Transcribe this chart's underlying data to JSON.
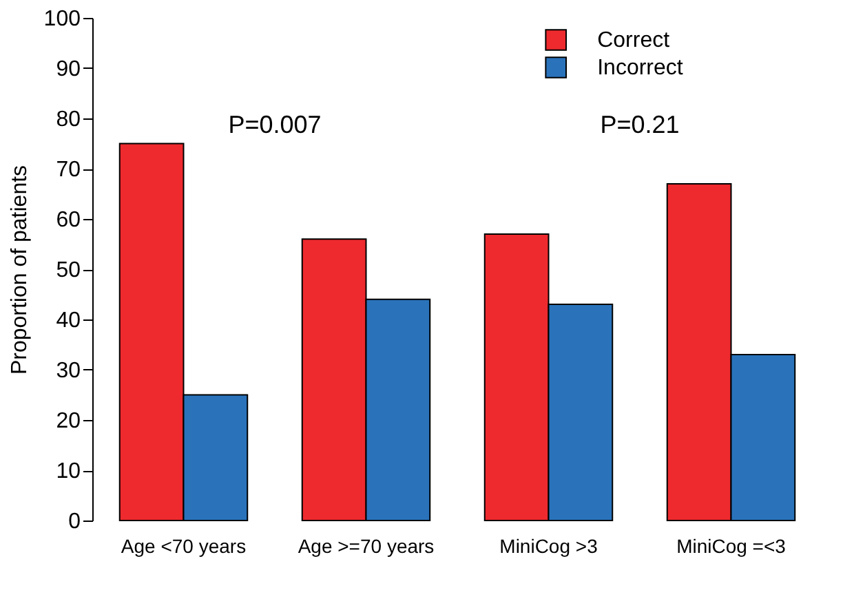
{
  "chart_data": {
    "type": "bar",
    "ylabel": "Proportion of patients",
    "categories": [
      "Age <70 years",
      "Age >=70 years",
      "MiniCog >3",
      "MiniCog =<3"
    ],
    "series": [
      {
        "name": "Correct",
        "color": "#ee2a2e",
        "values": [
          75,
          56,
          57,
          67
        ]
      },
      {
        "name": "Incorrect",
        "color": "#2a73bb",
        "values": [
          25,
          44,
          43,
          33
        ]
      }
    ],
    "ylim": [
      0,
      100
    ],
    "yticks": [
      0,
      10,
      20,
      30,
      40,
      50,
      60,
      70,
      80,
      90,
      100
    ],
    "annotations": [
      "P=0.007",
      "P=0.21"
    ],
    "grid": false,
    "legend": "top right"
  }
}
